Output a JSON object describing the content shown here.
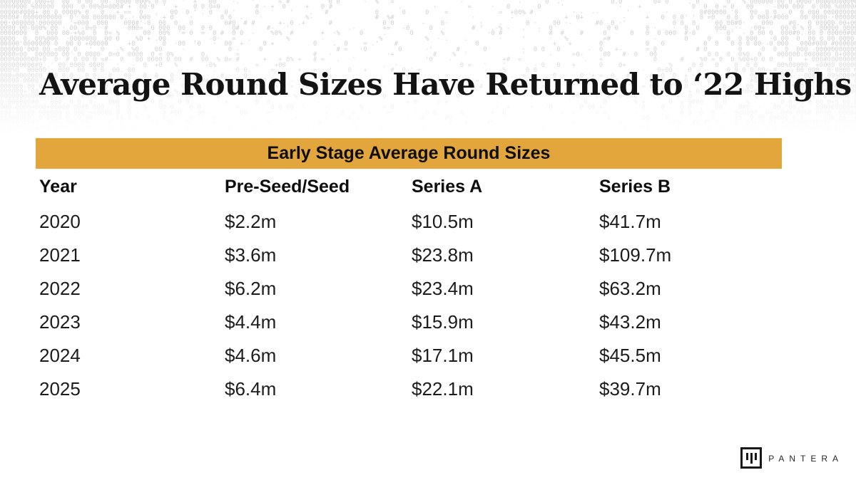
{
  "slide": {
    "title": "Average Round Sizes Have Returned to ‘22 Highs"
  },
  "table": {
    "title": "Early Stage Average Round Sizes",
    "header_bg": "#E2A63C",
    "columns": [
      "Year",
      "Pre-Seed/Seed",
      "Series A",
      "Series B"
    ],
    "rows": [
      [
        "2020",
        "$2.2m",
        "$10.5m",
        "$41.7m"
      ],
      [
        "2021",
        "$3.6m",
        "$23.8m",
        "$109.7m"
      ],
      [
        "2022",
        "$6.2m",
        "$23.4m",
        "$63.2m"
      ],
      [
        "2023",
        "$4.4m",
        "$15.9m",
        "$43.2m"
      ],
      [
        "2024",
        "$4.6m",
        "$17.1m",
        "$45.5m"
      ],
      [
        "2025",
        "$6.4m",
        "$22.1m",
        "$39.7m"
      ]
    ]
  },
  "footer": {
    "brand": "PANTERA"
  },
  "chart_data": {
    "type": "table",
    "title": "Early Stage Average Round Sizes",
    "columns": [
      "Year",
      "Pre-Seed/Seed",
      "Series A",
      "Series B"
    ],
    "categories": [
      "2020",
      "2021",
      "2022",
      "2023",
      "2024",
      "2025"
    ],
    "series": [
      {
        "name": "Pre-Seed/Seed",
        "values": [
          2.2,
          3.6,
          6.2,
          4.4,
          4.6,
          6.4
        ]
      },
      {
        "name": "Series A",
        "values": [
          10.5,
          23.8,
          23.4,
          15.9,
          17.1,
          22.1
        ]
      },
      {
        "name": "Series B",
        "values": [
          41.7,
          109.7,
          63.2,
          43.2,
          45.5,
          39.7
        ]
      }
    ],
    "units": "$m",
    "layout": {
      "header_bar_color": "#E2A63C",
      "header_text_color": "#0e0e0e"
    }
  }
}
